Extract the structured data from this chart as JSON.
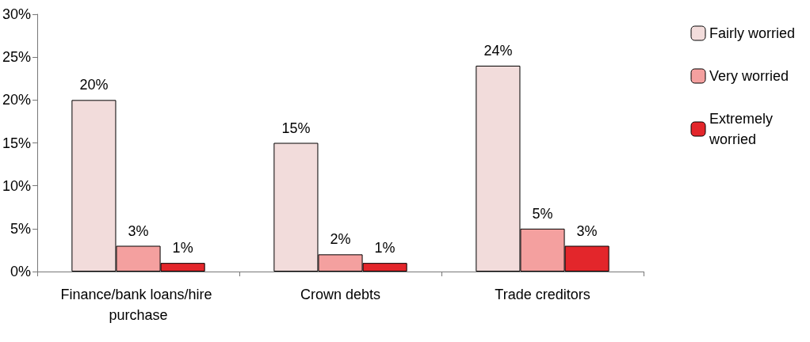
{
  "chart_data": {
    "type": "bar",
    "categories": [
      "Finance/bank loans/hire purchase",
      "Crown debts",
      "Trade creditors"
    ],
    "series": [
      {
        "name": "Fairly worried",
        "color": "#f2dcdb",
        "values": [
          20,
          15,
          24
        ],
        "value_labels": [
          "20%",
          "15%",
          "24%"
        ]
      },
      {
        "name": "Very worried",
        "color": "#f4a09f",
        "values": [
          3,
          2,
          5
        ],
        "value_labels": [
          "3%",
          "2%",
          "5%"
        ]
      },
      {
        "name": "Extremely worried",
        "color": "#e3262b",
        "values": [
          1,
          1,
          3
        ],
        "value_labels": [
          "1%",
          "1%",
          "3%"
        ]
      }
    ],
    "ylim": [
      0,
      30
    ],
    "yticks": [
      {
        "value": 0,
        "label": "0%"
      },
      {
        "value": 5,
        "label": "5%"
      },
      {
        "value": 10,
        "label": "10%"
      },
      {
        "value": 15,
        "label": "15%"
      },
      {
        "value": 20,
        "label": "20%"
      },
      {
        "value": 25,
        "label": "25%"
      },
      {
        "value": 30,
        "label": "30%"
      }
    ],
    "grid": false,
    "legend": "top right"
  }
}
